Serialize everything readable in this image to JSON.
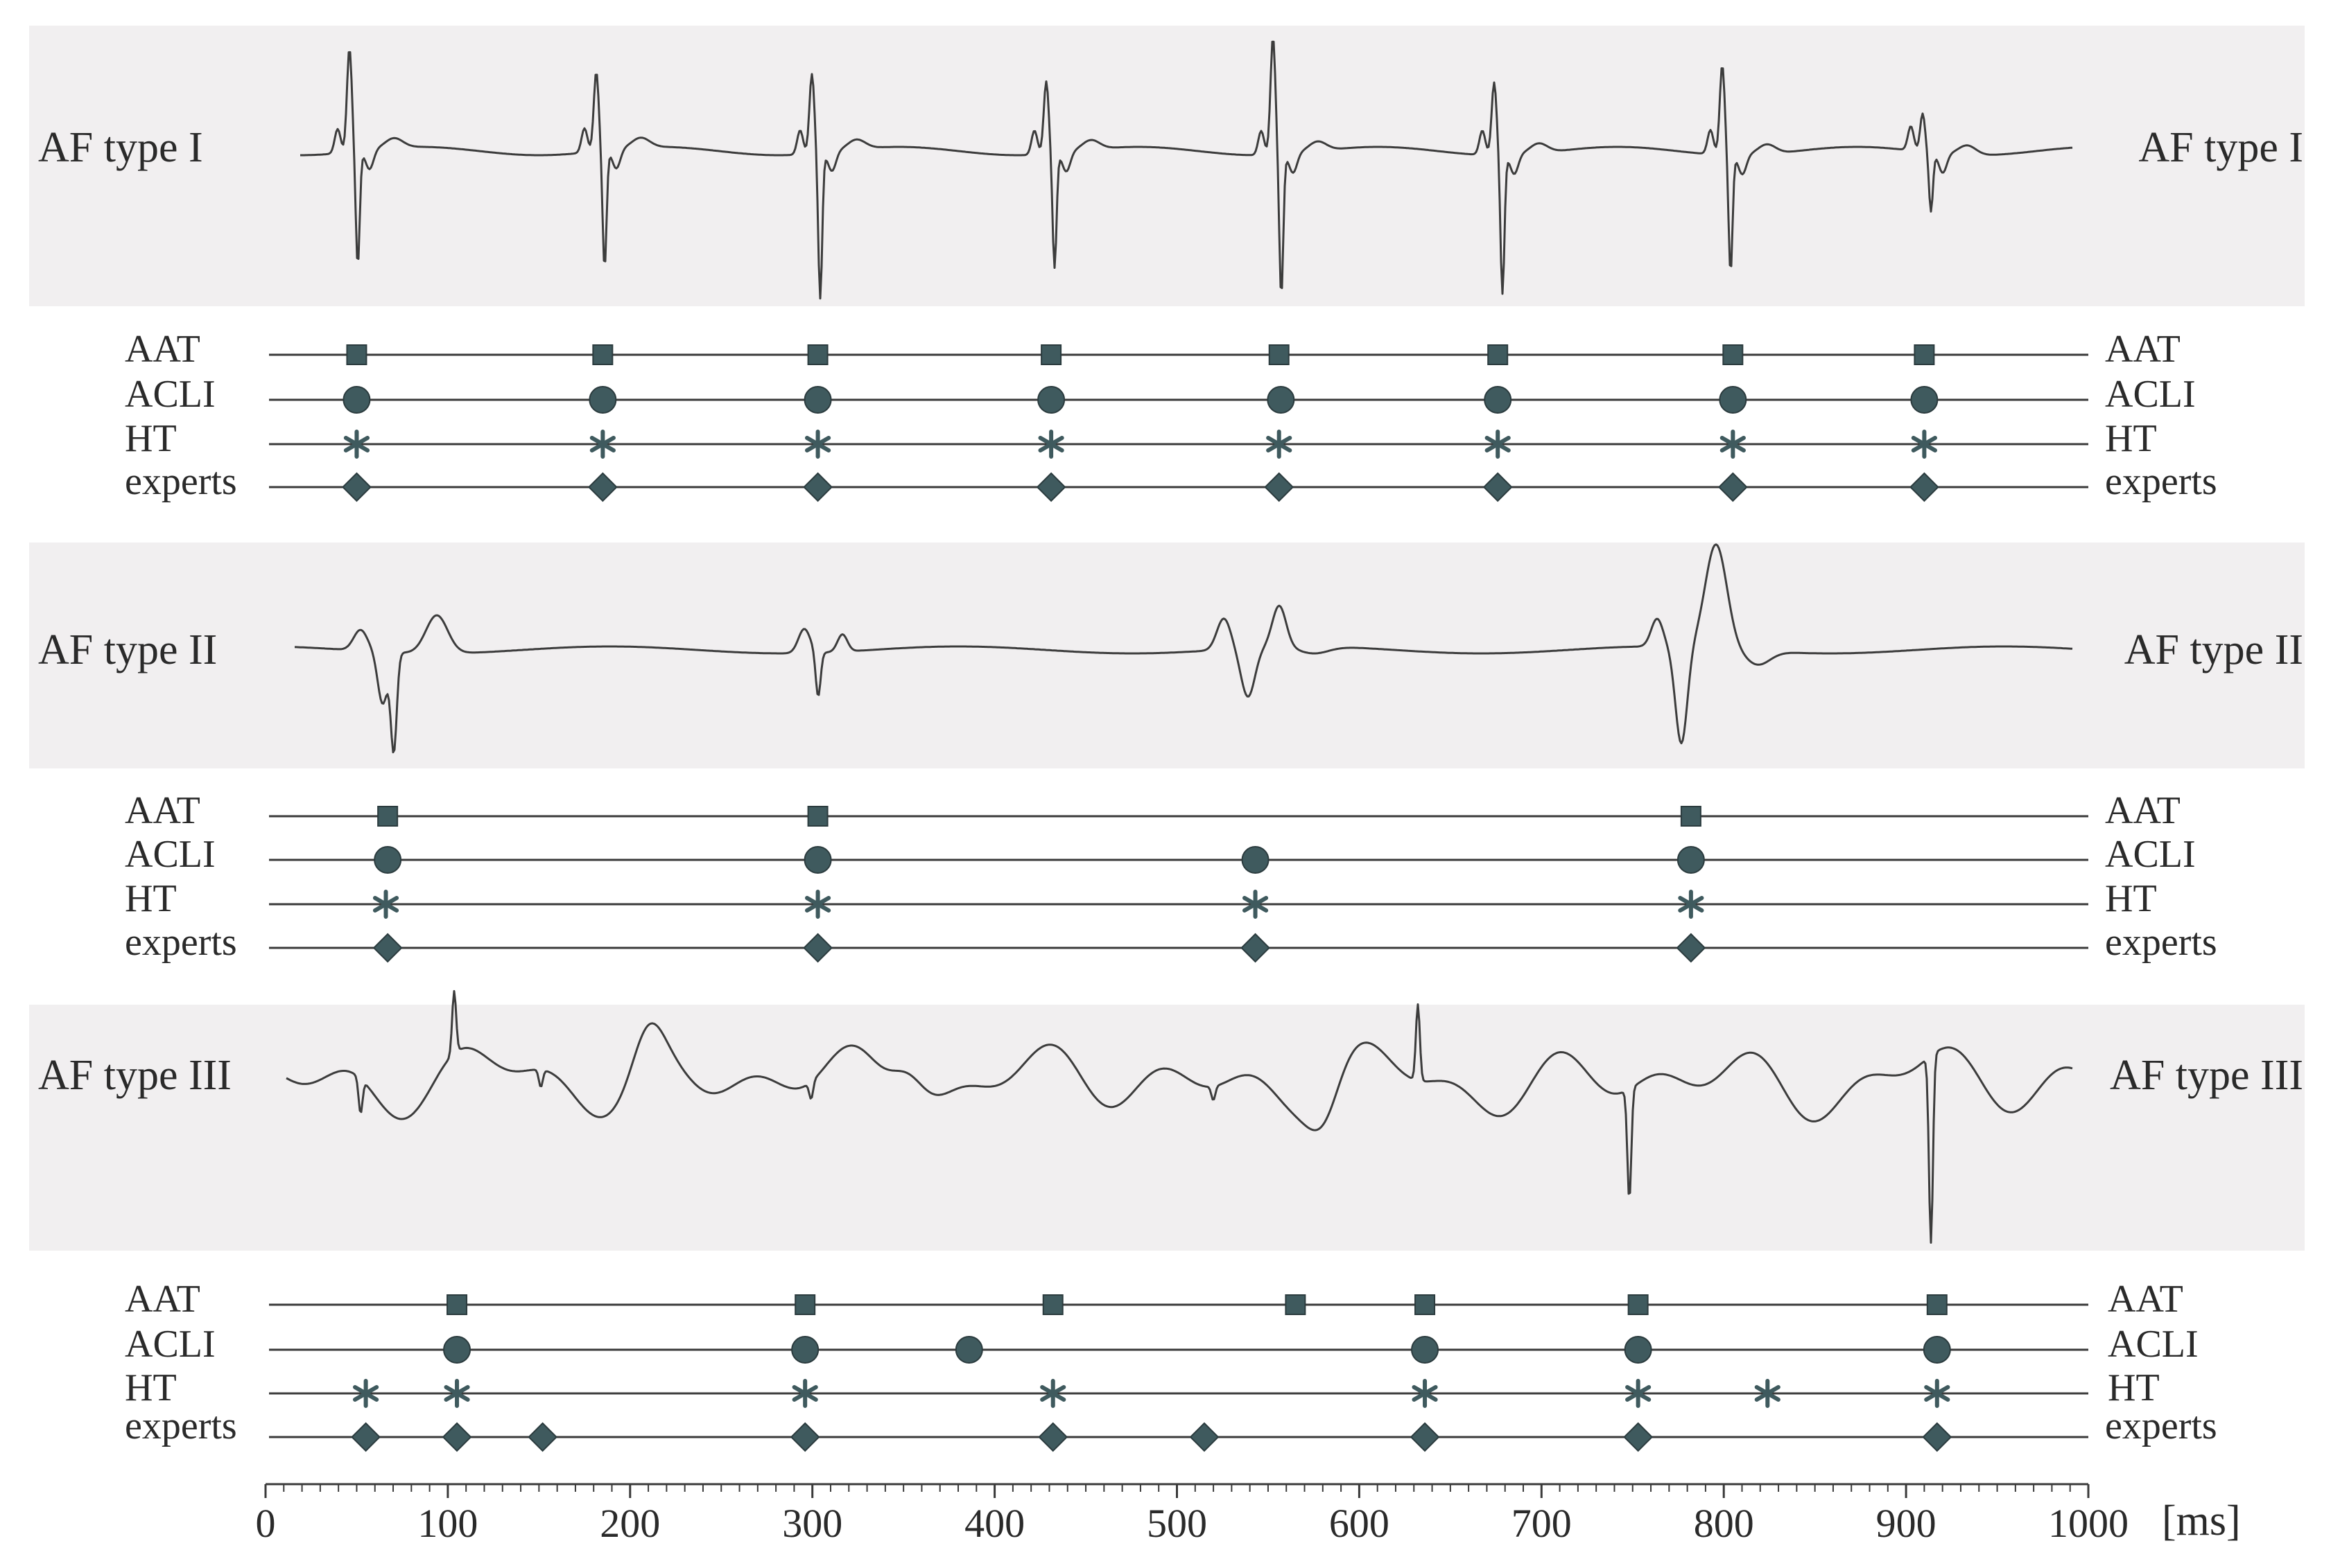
{
  "chart_data": {
    "type": "scatter",
    "description_units": "ms",
    "x_axis": {
      "min": 0,
      "max": 1000,
      "ticks": [
        0,
        100,
        200,
        300,
        400,
        500,
        600,
        700,
        800,
        900,
        1000
      ],
      "tick_labels": [
        "0",
        "100",
        "200",
        "300",
        "400",
        "500",
        "600",
        "700",
        "800",
        "900",
        "1000"
      ],
      "minor_step": 10,
      "unit_label": "[ms]"
    },
    "panels": [
      {
        "title": "AF type I",
        "signal_type": "afI",
        "series": [
          {
            "name": "AAT",
            "marker": "square",
            "x": [
              50,
              185,
              303,
              431,
              556,
              676,
              805,
              910
            ]
          },
          {
            "name": "ACLI",
            "marker": "circle",
            "x": [
              50,
              185,
              303,
              431,
              557,
              676,
              805,
              910
            ]
          },
          {
            "name": "HT",
            "marker": "asterisk",
            "x": [
              50,
              185,
              303,
              431,
              556,
              676,
              805,
              910
            ]
          },
          {
            "name": "experts",
            "marker": "diamond",
            "x": [
              50,
              185,
              303,
              431,
              556,
              676,
              805,
              910
            ]
          }
        ]
      },
      {
        "title": "AF type II",
        "signal_type": "afII",
        "series": [
          {
            "name": "AAT",
            "marker": "square",
            "x": [
              67,
              303,
              782
            ]
          },
          {
            "name": "ACLI",
            "marker": "circle",
            "x": [
              67,
              303,
              543,
              782
            ]
          },
          {
            "name": "HT",
            "marker": "asterisk",
            "x": [
              66,
              303,
              543,
              782
            ]
          },
          {
            "name": "experts",
            "marker": "diamond",
            "x": [
              67,
              303,
              543,
              782
            ]
          }
        ]
      },
      {
        "title": "AF type III",
        "signal_type": "afIII",
        "series": [
          {
            "name": "AAT",
            "marker": "square",
            "x": [
              105,
              296,
              432,
              565,
              636,
              753,
              917
            ]
          },
          {
            "name": "ACLI",
            "marker": "circle",
            "x": [
              105,
              296,
              386,
              636,
              753,
              917
            ]
          },
          {
            "name": "HT",
            "marker": "asterisk",
            "x": [
              55,
              105,
              296,
              432,
              636,
              753,
              824,
              917
            ]
          },
          {
            "name": "experts",
            "marker": "diamond",
            "x": [
              55,
              105,
              152,
              296,
              432,
              515,
              636,
              753,
              917
            ]
          }
        ]
      }
    ]
  },
  "colors": {
    "panel_background": "#f1eff0",
    "marker_fill": "#3f5a5e",
    "signal": "#3c3c3c"
  }
}
